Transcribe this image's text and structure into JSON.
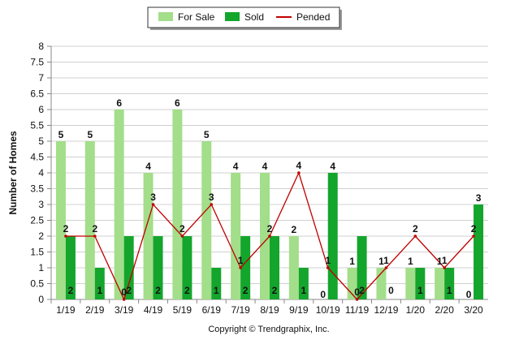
{
  "chart_data": {
    "type": "bar",
    "categories": [
      "1/19",
      "2/19",
      "3/19",
      "4/19",
      "5/19",
      "6/19",
      "7/19",
      "8/19",
      "9/19",
      "10/19",
      "11/19",
      "12/19",
      "1/20",
      "2/20",
      "3/20"
    ],
    "series": [
      {
        "name": "For Sale",
        "kind": "bar",
        "color": "#a3de8a",
        "values": [
          5,
          5,
          6,
          4,
          6,
          5,
          4,
          4,
          2,
          0,
          1,
          1,
          1,
          1,
          0
        ]
      },
      {
        "name": "Sold",
        "kind": "bar",
        "color": "#14a52c",
        "values": [
          2,
          1,
          2,
          2,
          2,
          1,
          2,
          2,
          1,
          4,
          2,
          0,
          1,
          1,
          3
        ]
      },
      {
        "name": "Pended",
        "kind": "line",
        "color": "#c00000",
        "values": [
          2,
          2,
          0,
          3,
          2,
          3,
          1,
          2,
          4,
          1,
          0,
          1,
          2,
          1,
          2
        ]
      }
    ],
    "xlabel": "",
    "ylabel": "Number of Homes",
    "ylim": [
      0,
      8
    ],
    "yticks": [
      "0",
      "0.5",
      "1",
      "1.5",
      "2",
      "2.5",
      "3",
      "3.5",
      "4",
      "4.5",
      "5",
      "5.5",
      "6",
      "6.5",
      "7",
      "7.5",
      "8"
    ],
    "grid": true,
    "legend_position": "top-center",
    "copyright": "Copyright © Trendgraphix, Inc."
  }
}
